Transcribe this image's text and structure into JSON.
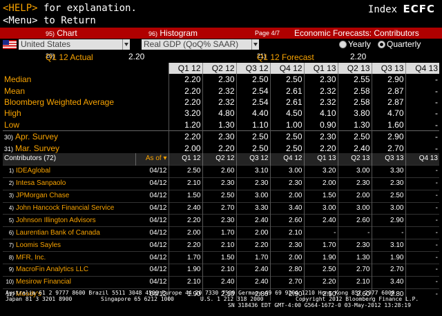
{
  "top": {
    "help_key": "<HELP>",
    "help_text": "for explanation.",
    "menu_line": "<Menu> to Return",
    "index_prefix": "Index",
    "index_ticker": "ECFC"
  },
  "toolbar": {
    "chart_num": "95)",
    "chart_label": "Chart",
    "hist_num": "96)",
    "hist_label": "Histogram",
    "page": "Page 4/7",
    "title": "Economic Forecasts: Contributors"
  },
  "selectors": {
    "country": "United States",
    "indicator": "Real GDP (QoQ% SAAR)",
    "yearly": "Yearly",
    "quarterly": "Quarterly"
  },
  "actuals": {
    "actual_num": "20)",
    "actual_label": "Q1 12 Actual",
    "actual_value": "2.20",
    "forecast_num": "21)",
    "forecast_label": "Q1 12 Forecast",
    "forecast_value": "2.20"
  },
  "summary": {
    "columns": [
      "Q1 12",
      "Q2 12",
      "Q3 12",
      "Q4 12",
      "Q1 13",
      "Q2 13",
      "Q3 13",
      "Q4 13"
    ],
    "rows": [
      {
        "label": "Median",
        "values": [
          "2.20",
          "2.30",
          "2.50",
          "2.50",
          "2.30",
          "2.55",
          "2.90",
          "-"
        ]
      },
      {
        "label": "Mean",
        "values": [
          "2.20",
          "2.32",
          "2.54",
          "2.61",
          "2.32",
          "2.58",
          "2.87",
          "-"
        ]
      },
      {
        "label": "Bloomberg Weighted Average",
        "values": [
          "2.20",
          "2.32",
          "2.54",
          "2.61",
          "2.32",
          "2.58",
          "2.87",
          "-"
        ]
      },
      {
        "label": "High",
        "values": [
          "3.20",
          "4.80",
          "4.40",
          "4.50",
          "4.10",
          "3.80",
          "4.70",
          "-"
        ]
      },
      {
        "label": "Low",
        "values": [
          "1.20",
          "1.30",
          "1.10",
          "1.00",
          "0.90",
          "1.30",
          "1.60",
          "-"
        ]
      },
      {
        "num": "30)",
        "label": "Apr. Survey",
        "values": [
          "2.20",
          "2.30",
          "2.50",
          "2.50",
          "2.30",
          "2.50",
          "2.90",
          "-"
        ]
      },
      {
        "num": "31)",
        "label": "Mar. Survey",
        "values": [
          "2.00",
          "2.20",
          "2.50",
          "2.50",
          "2.20",
          "2.40",
          "2.70",
          "-"
        ]
      }
    ]
  },
  "contributors": {
    "header_label": "Contributors (72)",
    "asof_label": "As of",
    "columns": [
      "Q1 12",
      "Q2 12",
      "Q3 12",
      "Q4 12",
      "Q1 13",
      "Q2 13",
      "Q3 13",
      "Q4 13"
    ],
    "rows": [
      {
        "num": "1)",
        "name": "IDEAglobal",
        "date": "04/12",
        "values": [
          "2.50",
          "2.60",
          "3.10",
          "3.00",
          "3.20",
          "3.00",
          "3.30",
          "-"
        ]
      },
      {
        "num": "2)",
        "name": "Intesa Sanpaolo",
        "date": "04/12",
        "values": [
          "2.10",
          "2.30",
          "2.30",
          "2.30",
          "2.00",
          "2.30",
          "2.30",
          "-"
        ]
      },
      {
        "num": "3)",
        "name": "JPMorgan Chase",
        "date": "04/12",
        "values": [
          "1.50",
          "2.50",
          "3.00",
          "2.00",
          "1.50",
          "2.00",
          "2.50",
          "-"
        ]
      },
      {
        "num": "4)",
        "name": "John Hancock Financial Service",
        "date": "04/12",
        "values": [
          "2.40",
          "2.70",
          "3.30",
          "3.40",
          "3.00",
          "3.00",
          "3.00",
          "-"
        ]
      },
      {
        "num": "5)",
        "name": "Johnson Illington Advisors",
        "date": "04/12",
        "values": [
          "2.20",
          "2.30",
          "2.40",
          "2.60",
          "2.40",
          "2.60",
          "2.90",
          "-"
        ]
      },
      {
        "num": "6)",
        "name": "Laurentian Bank of Canada",
        "date": "04/12",
        "values": [
          "2.00",
          "1.70",
          "2.00",
          "2.10",
          "-",
          "-",
          "-",
          "-"
        ]
      },
      {
        "num": "7)",
        "name": "Loomis Sayles",
        "date": "04/12",
        "values": [
          "2.20",
          "2.10",
          "2.20",
          "2.30",
          "1.70",
          "2.30",
          "3.10",
          "-"
        ]
      },
      {
        "num": "8)",
        "name": "MFR, Inc.",
        "date": "04/12",
        "values": [
          "1.70",
          "1.50",
          "1.70",
          "2.00",
          "1.90",
          "1.30",
          "1.90",
          "-"
        ]
      },
      {
        "num": "9)",
        "name": "MacroFin Analytics LLC",
        "date": "04/12",
        "values": [
          "1.90",
          "2.10",
          "2.40",
          "2.80",
          "2.50",
          "2.70",
          "2.70",
          "-"
        ]
      },
      {
        "num": "10)",
        "name": "Mesirow Financial",
        "date": "04/12",
        "values": [
          "2.10",
          "2.40",
          "2.40",
          "2.70",
          "2.20",
          "2.10",
          "3.40",
          "-"
        ]
      },
      {
        "num": "11)",
        "name": "Moody's",
        "date": "04/12",
        "values": [
          "1.90",
          "2.10",
          "2.80",
          "2.90",
          "2.50",
          "2.60",
          "2.80",
          "-"
        ]
      }
    ]
  },
  "footer": {
    "line1": "Australia 61 2 9777 8600 Brazil 5511 3048 4500 Europe 44 20 7330 7500 Germany 49 69 9204 1210 Hong Kong 852 2977 6000",
    "line2a": "Japan 81 3 3201 8900",
    "line2b": "Singapore 65 6212 1000",
    "line2c": "U.S. 1 212 318 2000",
    "line2d": "Copyright 2012 Bloomberg Finance L.P.",
    "line3": "SN 318436 EDT  GMT-4:00 G564-1672-0 03-May-2012 13:28:19"
  }
}
